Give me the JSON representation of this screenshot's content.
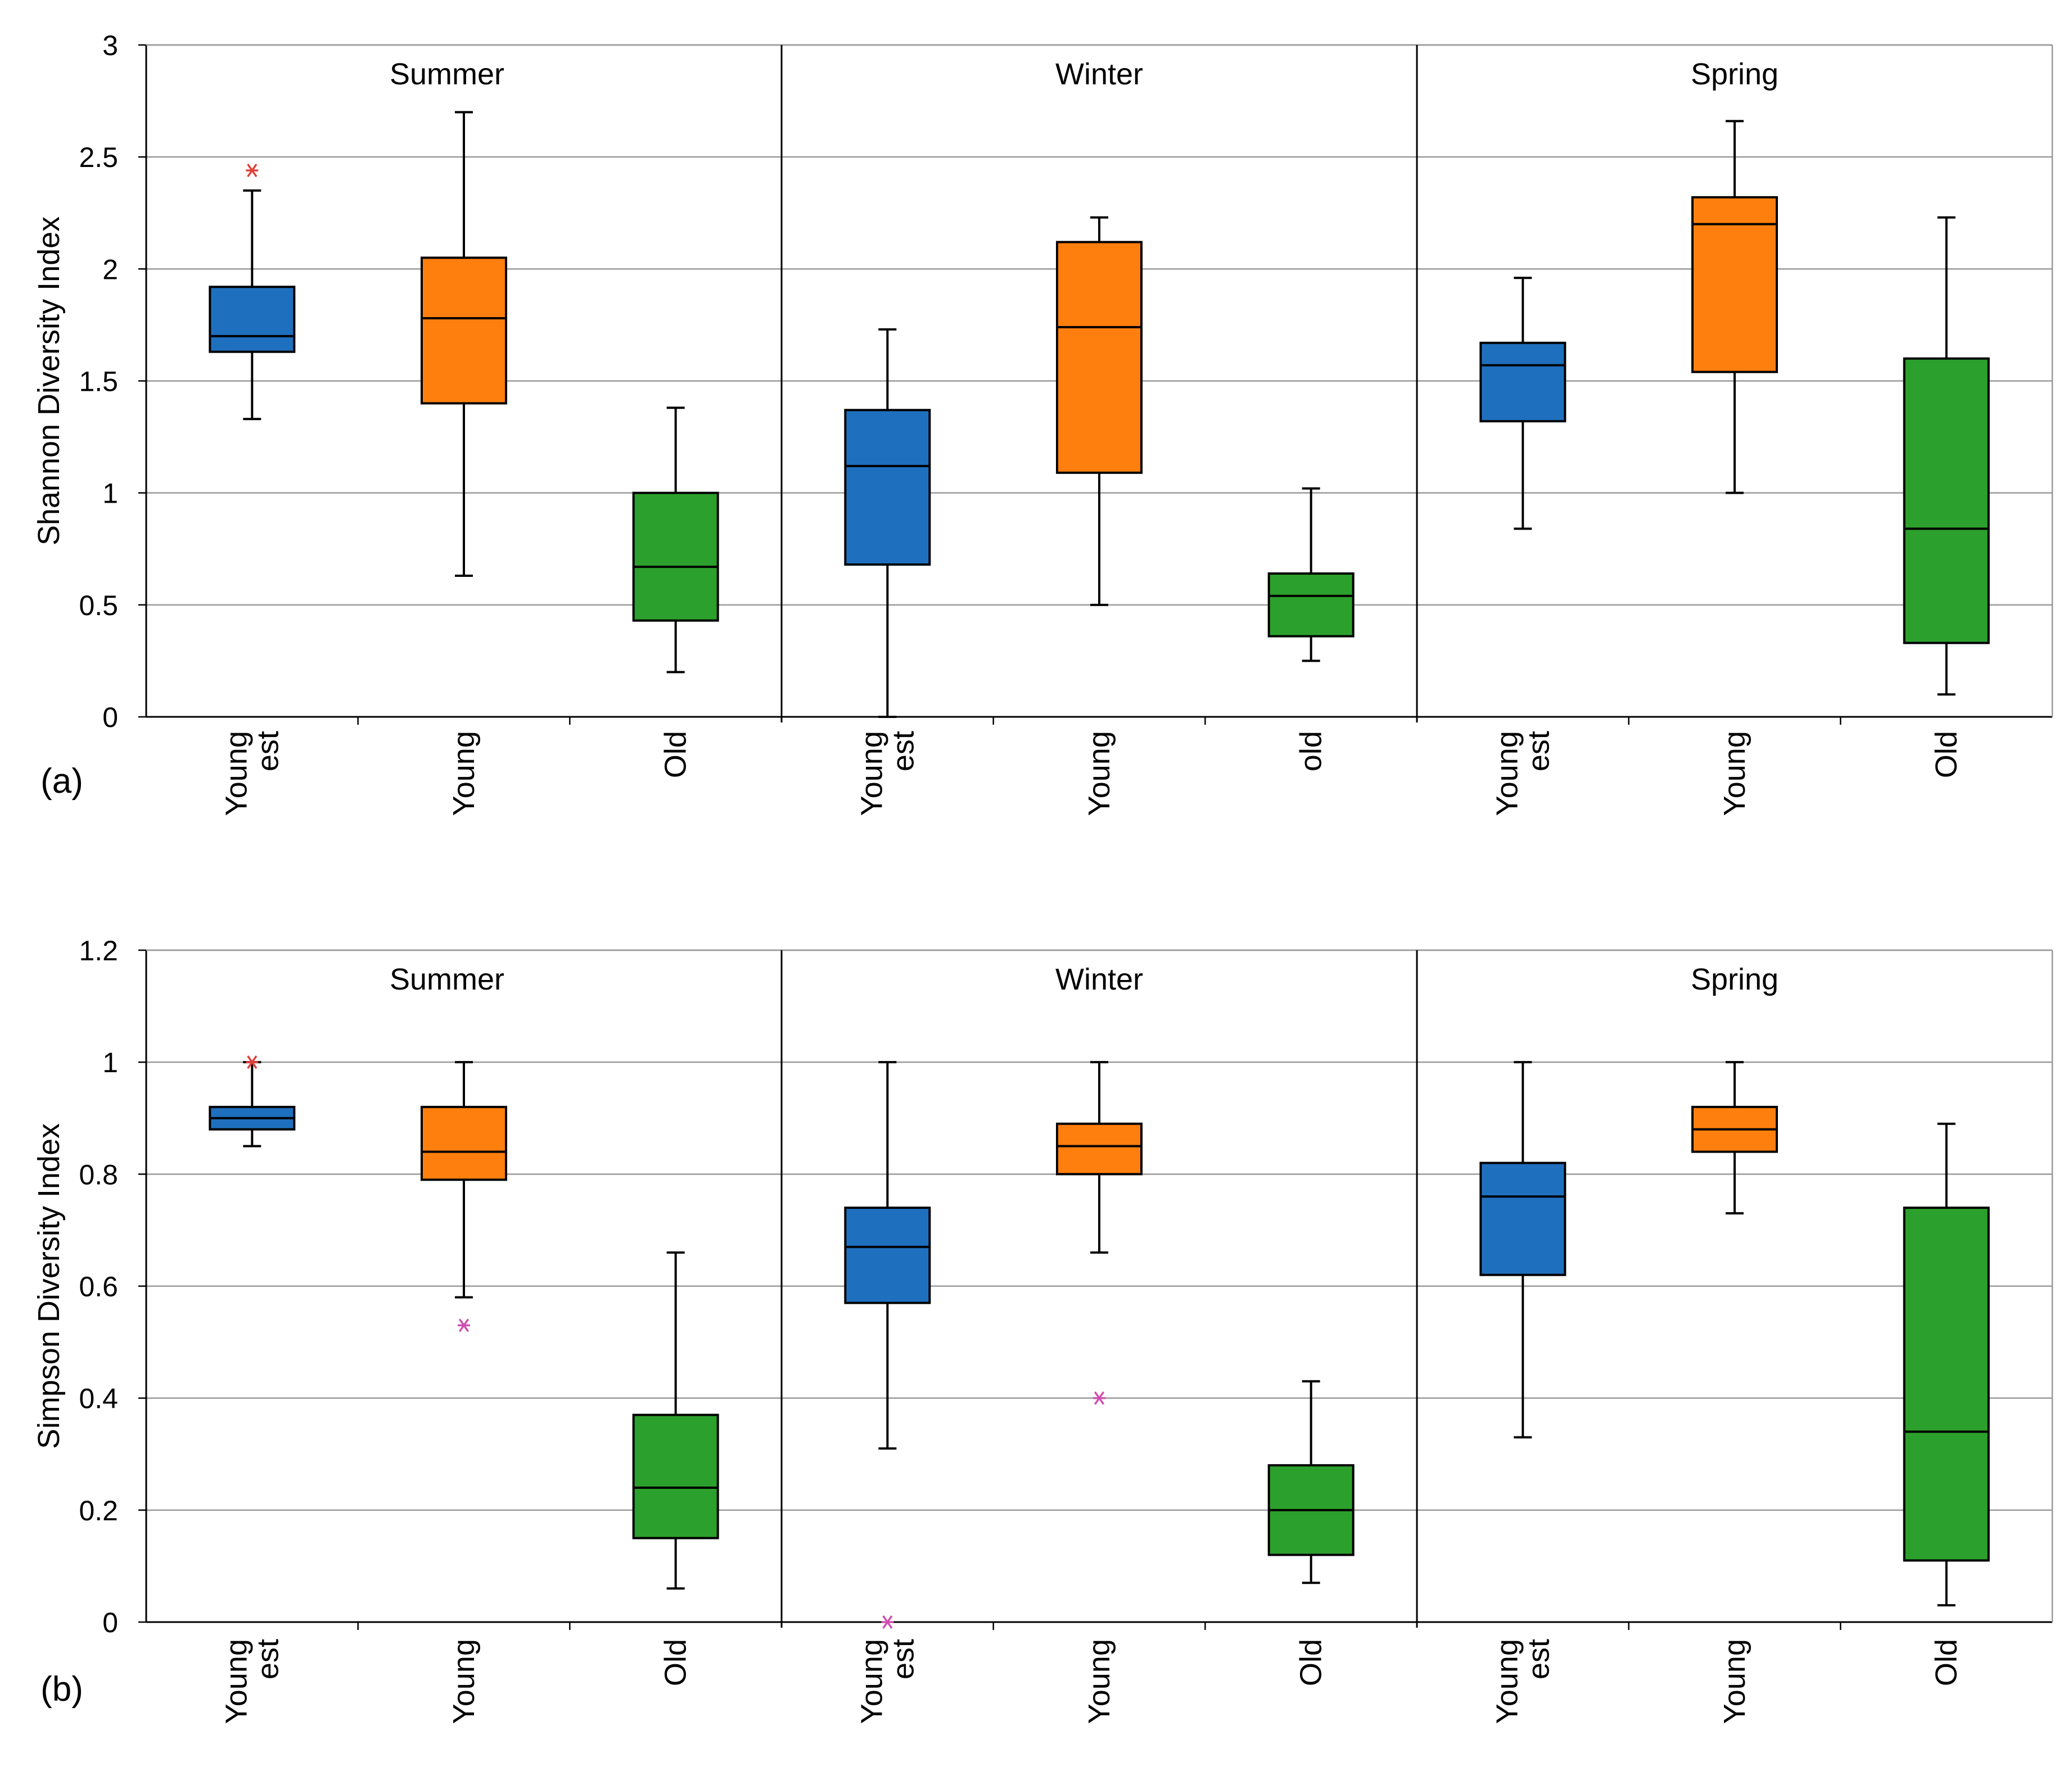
{
  "chart_data": [
    {
      "type": "box",
      "panel_label": "(a)",
      "ylabel": "Shannon Diversity Index",
      "ylim": [
        0,
        3
      ],
      "yticks": [
        "0",
        "0.5",
        "1",
        "1.5",
        "2",
        "2.5",
        "3"
      ],
      "grid": true,
      "groups": [
        {
          "name": "Summer",
          "boxes": [
            {
              "label": [
                "Young",
                "est"
              ],
              "color": "#1f6fbf",
              "min": 1.33,
              "q1": 1.63,
              "median": 1.7,
              "q3": 1.92,
              "max": 2.35,
              "outliers": [
                2.44
              ]
            },
            {
              "label": [
                "Young"
              ],
              "color": "#ff7f0e",
              "min": 0.63,
              "q1": 1.4,
              "median": 1.78,
              "q3": 2.05,
              "max": 2.7,
              "outliers": []
            },
            {
              "label": [
                "Old"
              ],
              "color": "#2ca02c",
              "min": 0.2,
              "q1": 0.43,
              "median": 0.67,
              "q3": 1.0,
              "max": 1.38,
              "outliers": []
            }
          ]
        },
        {
          "name": "Winter",
          "boxes": [
            {
              "label": [
                "Young",
                "est"
              ],
              "color": "#1f6fbf",
              "min": 0.0,
              "q1": 0.68,
              "median": 1.12,
              "q3": 1.37,
              "max": 1.73,
              "outliers": []
            },
            {
              "label": [
                "Young"
              ],
              "color": "#ff7f0e",
              "min": 0.5,
              "q1": 1.09,
              "median": 1.74,
              "q3": 2.12,
              "max": 2.23,
              "outliers": []
            },
            {
              "label": [
                "old"
              ],
              "color": "#2ca02c",
              "min": 0.25,
              "q1": 0.36,
              "median": 0.54,
              "q3": 0.64,
              "max": 1.02,
              "outliers": []
            }
          ]
        },
        {
          "name": "Spring",
          "boxes": [
            {
              "label": [
                "Young",
                "est"
              ],
              "color": "#1f6fbf",
              "min": 0.84,
              "q1": 1.32,
              "median": 1.57,
              "q3": 1.67,
              "max": 1.96,
              "outliers": []
            },
            {
              "label": [
                "Young"
              ],
              "color": "#ff7f0e",
              "min": 1.0,
              "q1": 1.54,
              "median": 2.2,
              "q3": 2.32,
              "max": 2.66,
              "outliers": []
            },
            {
              "label": [
                "Old"
              ],
              "color": "#2ca02c",
              "min": 0.1,
              "q1": 0.33,
              "median": 0.84,
              "q3": 1.6,
              "max": 2.23,
              "outliers": []
            }
          ]
        }
      ]
    },
    {
      "type": "box",
      "panel_label": "(b)",
      "ylabel": "Simpson Diversity Index",
      "ylim": [
        0,
        1.2
      ],
      "yticks": [
        "0",
        "0.2",
        "0.4",
        "0.6",
        "0.8",
        "1",
        "1.2"
      ],
      "grid": true,
      "groups": [
        {
          "name": "Summer",
          "boxes": [
            {
              "label": [
                "Young",
                "est"
              ],
              "color": "#1f6fbf",
              "min": 0.85,
              "q1": 0.88,
              "median": 0.9,
              "q3": 0.92,
              "max": 1.0,
              "outliers": [
                1.0
              ]
            },
            {
              "label": [
                "Young"
              ],
              "color": "#ff7f0e",
              "min": 0.58,
              "q1": 0.79,
              "median": 0.84,
              "q3": 0.92,
              "max": 1.0,
              "outliers": [
                0.53
              ]
            },
            {
              "label": [
                "Old"
              ],
              "color": "#2ca02c",
              "min": 0.06,
              "q1": 0.15,
              "median": 0.24,
              "q3": 0.37,
              "max": 0.66,
              "outliers": []
            }
          ]
        },
        {
          "name": "Winter",
          "boxes": [
            {
              "label": [
                "Young",
                "est"
              ],
              "color": "#1f6fbf",
              "min": 0.31,
              "q1": 0.57,
              "median": 0.67,
              "q3": 0.74,
              "max": 1.0,
              "outliers": [
                0.0
              ]
            },
            {
              "label": [
                "Young"
              ],
              "color": "#ff7f0e",
              "min": 0.66,
              "q1": 0.8,
              "median": 0.85,
              "q3": 0.89,
              "max": 1.0,
              "outliers": [
                0.4
              ]
            },
            {
              "label": [
                "Old"
              ],
              "color": "#2ca02c",
              "min": 0.07,
              "q1": 0.12,
              "median": 0.2,
              "q3": 0.28,
              "max": 0.43,
              "outliers": []
            }
          ]
        },
        {
          "name": "Spring",
          "boxes": [
            {
              "label": [
                "Young",
                "est"
              ],
              "color": "#1f6fbf",
              "min": 0.33,
              "q1": 0.62,
              "median": 0.76,
              "q3": 0.82,
              "max": 1.0,
              "outliers": []
            },
            {
              "label": [
                "Young"
              ],
              "color": "#ff7f0e",
              "min": 0.73,
              "q1": 0.84,
              "median": 0.88,
              "q3": 0.92,
              "max": 1.0,
              "outliers": []
            },
            {
              "label": [
                "Old"
              ],
              "color": "#2ca02c",
              "min": 0.03,
              "q1": 0.11,
              "median": 0.34,
              "q3": 0.74,
              "max": 0.89,
              "outliers": []
            }
          ]
        }
      ]
    }
  ]
}
